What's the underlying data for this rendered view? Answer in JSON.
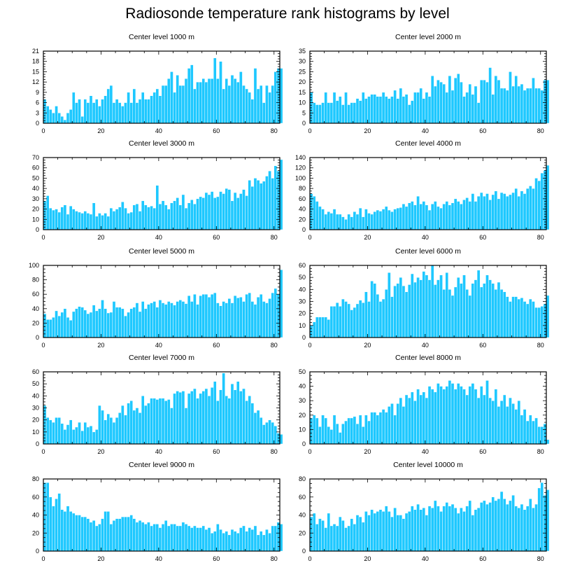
{
  "title": "Radiosonde temperature rank histograms by level",
  "colors": {
    "bar": "#1ec8ff",
    "bar_edge": "#ffffff",
    "axis": "#000000"
  },
  "chart_data": [
    {
      "type": "bar",
      "title": "Center level 1000 m",
      "xlim": [
        0,
        82
      ],
      "ylim": [
        0,
        21
      ],
      "xticks": [
        0,
        20,
        40,
        60,
        80
      ],
      "yticks": [
        0,
        3,
        6,
        9,
        12,
        15,
        18,
        21
      ],
      "values": [
        7,
        5,
        4,
        3,
        5,
        3,
        2,
        1,
        3,
        4,
        9,
        6,
        7,
        2,
        7,
        6,
        8,
        6,
        7,
        5,
        7,
        8,
        10,
        11,
        6,
        7,
        6,
        5,
        6,
        9,
        6,
        10,
        6,
        7,
        9,
        7,
        7,
        8,
        9,
        10,
        8,
        11,
        11,
        13,
        15,
        9,
        14,
        11,
        11,
        13,
        16,
        17,
        10,
        12,
        12,
        13,
        12,
        13,
        13,
        19,
        13,
        18,
        10,
        13,
        11,
        14,
        13,
        12,
        15,
        11,
        10,
        9,
        7,
        16,
        10,
        11,
        6,
        11,
        9,
        11,
        15,
        16,
        16
      ]
    },
    {
      "type": "bar",
      "title": "Center level 2000 m",
      "xlim": [
        0,
        82
      ],
      "ylim": [
        0,
        35
      ],
      "xticks": [
        0,
        20,
        40,
        60,
        80
      ],
      "yticks": [
        0,
        5,
        10,
        15,
        20,
        25,
        30,
        35
      ],
      "values": [
        15,
        10,
        9,
        9,
        10,
        15,
        10,
        10,
        15,
        11,
        13,
        9,
        15,
        9,
        10,
        10,
        12,
        11,
        15,
        12,
        13,
        14,
        14,
        13,
        13,
        15,
        13,
        12,
        13,
        16,
        12,
        17,
        13,
        14,
        9,
        11,
        15,
        15,
        17,
        12,
        15,
        13,
        23,
        18,
        21,
        20,
        19,
        15,
        23,
        16,
        22,
        24,
        20,
        13,
        15,
        19,
        14,
        18,
        10,
        21,
        21,
        20,
        27,
        14,
        23,
        21,
        17,
        17,
        16,
        25,
        18,
        23,
        18,
        19,
        16,
        17,
        17,
        22,
        17,
        17,
        16,
        21,
        21
      ]
    },
    {
      "type": "bar",
      "title": "Center level 3000 m",
      "xlim": [
        0,
        82
      ],
      "ylim": [
        0,
        70
      ],
      "xticks": [
        0,
        20,
        40,
        60,
        80
      ],
      "yticks": [
        0,
        10,
        20,
        30,
        40,
        50,
        60,
        70
      ],
      "values": [
        28,
        33,
        21,
        19,
        20,
        17,
        22,
        24,
        15,
        23,
        20,
        18,
        17,
        16,
        18,
        16,
        15,
        26,
        13,
        16,
        14,
        16,
        13,
        21,
        18,
        20,
        22,
        27,
        21,
        16,
        17,
        24,
        25,
        18,
        28,
        24,
        22,
        23,
        21,
        43,
        25,
        28,
        24,
        20,
        26,
        28,
        31,
        24,
        34,
        21,
        26,
        29,
        25,
        30,
        32,
        31,
        36,
        34,
        37,
        31,
        32,
        37,
        35,
        40,
        39,
        28,
        36,
        31,
        35,
        39,
        33,
        48,
        42,
        50,
        48,
        45,
        47,
        52,
        57,
        50,
        62,
        57,
        68
      ]
    },
    {
      "type": "bar",
      "title": "Center level 4000 m",
      "xlim": [
        0,
        82
      ],
      "ylim": [
        0,
        140
      ],
      "xticks": [
        0,
        20,
        40,
        60,
        80
      ],
      "yticks": [
        0,
        20,
        40,
        60,
        80,
        100,
        120,
        140
      ],
      "values": [
        70,
        65,
        55,
        45,
        40,
        30,
        35,
        32,
        40,
        30,
        30,
        25,
        20,
        30,
        25,
        35,
        30,
        42,
        25,
        40,
        32,
        30,
        35,
        38,
        36,
        40,
        45,
        38,
        35,
        40,
        42,
        43,
        50,
        45,
        52,
        55,
        48,
        65,
        50,
        55,
        48,
        38,
        50,
        55,
        45,
        42,
        50,
        55,
        48,
        52,
        60,
        55,
        50,
        58,
        62,
        55,
        70,
        55,
        65,
        72,
        65,
        70,
        58,
        68,
        75,
        60,
        72,
        70,
        65,
        68,
        72,
        80,
        65,
        75,
        70,
        80,
        85,
        80,
        100,
        95,
        110,
        115,
        125
      ]
    },
    {
      "type": "bar",
      "title": "Center level 5000 m",
      "xlim": [
        0,
        82
      ],
      "ylim": [
        0,
        100
      ],
      "xticks": [
        0,
        20,
        40,
        60,
        80
      ],
      "yticks": [
        0,
        20,
        40,
        60,
        80,
        100
      ],
      "values": [
        33,
        25,
        25,
        28,
        37,
        30,
        35,
        40,
        28,
        24,
        36,
        40,
        43,
        42,
        38,
        33,
        35,
        45,
        37,
        40,
        52,
        40,
        34,
        35,
        50,
        42,
        42,
        40,
        30,
        35,
        40,
        42,
        48,
        36,
        50,
        40,
        46,
        48,
        50,
        42,
        52,
        48,
        46,
        50,
        48,
        45,
        50,
        52,
        50,
        47,
        58,
        50,
        60,
        46,
        58,
        60,
        60,
        56,
        60,
        62,
        48,
        44,
        50,
        48,
        54,
        48,
        58,
        55,
        56,
        50,
        60,
        62,
        50,
        46,
        56,
        60,
        50,
        48,
        54,
        62,
        68,
        60,
        94
      ]
    },
    {
      "type": "bar",
      "title": "Center level 6000 m",
      "xlim": [
        0,
        82
      ],
      "ylim": [
        0,
        60
      ],
      "xticks": [
        0,
        20,
        40,
        60,
        80
      ],
      "yticks": [
        0,
        10,
        20,
        30,
        40,
        50,
        60
      ],
      "values": [
        10,
        13,
        17,
        17,
        17,
        17,
        15,
        26,
        26,
        29,
        26,
        32,
        30,
        28,
        23,
        25,
        28,
        31,
        29,
        38,
        30,
        47,
        45,
        36,
        30,
        32,
        40,
        54,
        34,
        43,
        45,
        50,
        43,
        38,
        44,
        53,
        46,
        50,
        48,
        55,
        52,
        48,
        60,
        44,
        48,
        52,
        40,
        54,
        40,
        35,
        42,
        50,
        45,
        52,
        40,
        35,
        45,
        48,
        56,
        42,
        45,
        52,
        48,
        45,
        40,
        46,
        40,
        38,
        34,
        30,
        34,
        34,
        32,
        33,
        30,
        28,
        32,
        30,
        25,
        25,
        26,
        28,
        35
      ]
    },
    {
      "type": "bar",
      "title": "Center level 7000 m",
      "xlim": [
        0,
        82
      ],
      "ylim": [
        0,
        60
      ],
      "xticks": [
        0,
        20,
        40,
        60,
        80
      ],
      "yticks": [
        0,
        10,
        20,
        30,
        40,
        50,
        60
      ],
      "values": [
        32,
        22,
        20,
        18,
        22,
        22,
        17,
        12,
        16,
        20,
        12,
        14,
        18,
        11,
        18,
        14,
        15,
        10,
        12,
        32,
        28,
        20,
        25,
        22,
        18,
        22,
        26,
        32,
        24,
        34,
        36,
        28,
        30,
        26,
        40,
        32,
        34,
        38,
        38,
        37,
        38,
        38,
        36,
        37,
        30,
        42,
        44,
        43,
        44,
        30,
        42,
        44,
        46,
        38,
        42,
        44,
        46,
        40,
        47,
        52,
        36,
        45,
        59,
        40,
        38,
        50,
        45,
        52,
        44,
        46,
        36,
        40,
        34,
        26,
        28,
        22,
        16,
        18,
        20,
        18,
        15,
        9,
        8
      ]
    },
    {
      "type": "bar",
      "title": "Center level 8000 m",
      "xlim": [
        0,
        82
      ],
      "ylim": [
        0,
        50
      ],
      "xticks": [
        0,
        20,
        40,
        60,
        80
      ],
      "yticks": [
        0,
        10,
        20,
        30,
        40,
        50
      ],
      "values": [
        18,
        20,
        18,
        12,
        20,
        18,
        12,
        10,
        20,
        14,
        8,
        14,
        16,
        18,
        18,
        19,
        14,
        20,
        12,
        20,
        16,
        22,
        22,
        20,
        22,
        24,
        22,
        26,
        28,
        20,
        28,
        32,
        26,
        34,
        32,
        36,
        30,
        38,
        34,
        36,
        32,
        40,
        38,
        36,
        42,
        40,
        38,
        40,
        44,
        42,
        38,
        42,
        40,
        38,
        34,
        40,
        42,
        38,
        32,
        40,
        34,
        44,
        32,
        30,
        38,
        26,
        30,
        34,
        26,
        32,
        28,
        24,
        30,
        20,
        24,
        16,
        20,
        16,
        18,
        12,
        12,
        14,
        3
      ]
    },
    {
      "type": "bar",
      "title": "Center level 9000 m",
      "xlim": [
        0,
        82
      ],
      "ylim": [
        0,
        80
      ],
      "xticks": [
        0,
        20,
        40,
        60,
        80
      ],
      "yticks": [
        0,
        20,
        40,
        60,
        80
      ],
      "values": [
        76,
        76,
        60,
        50,
        58,
        64,
        46,
        44,
        50,
        44,
        42,
        40,
        40,
        38,
        38,
        36,
        32,
        34,
        28,
        30,
        36,
        44,
        44,
        30,
        34,
        36,
        36,
        38,
        38,
        38,
        40,
        36,
        32,
        34,
        32,
        30,
        32,
        28,
        30,
        30,
        26,
        30,
        34,
        28,
        30,
        30,
        28,
        28,
        32,
        30,
        28,
        26,
        28,
        26,
        26,
        28,
        24,
        26,
        20,
        22,
        30,
        24,
        20,
        22,
        18,
        24,
        22,
        20,
        26,
        28,
        22,
        26,
        24,
        28,
        18,
        22,
        18,
        24,
        20,
        28,
        28,
        32,
        30
      ]
    },
    {
      "type": "bar",
      "title": "Center level 10000 m",
      "xlim": [
        0,
        82
      ],
      "ylim": [
        0,
        80
      ],
      "xticks": [
        0,
        20,
        40,
        60,
        80
      ],
      "yticks": [
        0,
        20,
        40,
        60,
        80
      ],
      "values": [
        38,
        42,
        30,
        36,
        34,
        26,
        42,
        28,
        30,
        28,
        38,
        34,
        26,
        28,
        36,
        30,
        40,
        38,
        32,
        44,
        40,
        46,
        42,
        44,
        46,
        44,
        50,
        44,
        38,
        48,
        40,
        40,
        36,
        42,
        44,
        50,
        46,
        52,
        46,
        48,
        40,
        50,
        48,
        56,
        50,
        44,
        50,
        54,
        50,
        52,
        48,
        42,
        48,
        44,
        50,
        56,
        40,
        46,
        48,
        54,
        56,
        52,
        54,
        60,
        56,
        58,
        66,
        58,
        52,
        56,
        62,
        50,
        48,
        52,
        46,
        50,
        58,
        48,
        52,
        70,
        76,
        62,
        68
      ]
    }
  ]
}
